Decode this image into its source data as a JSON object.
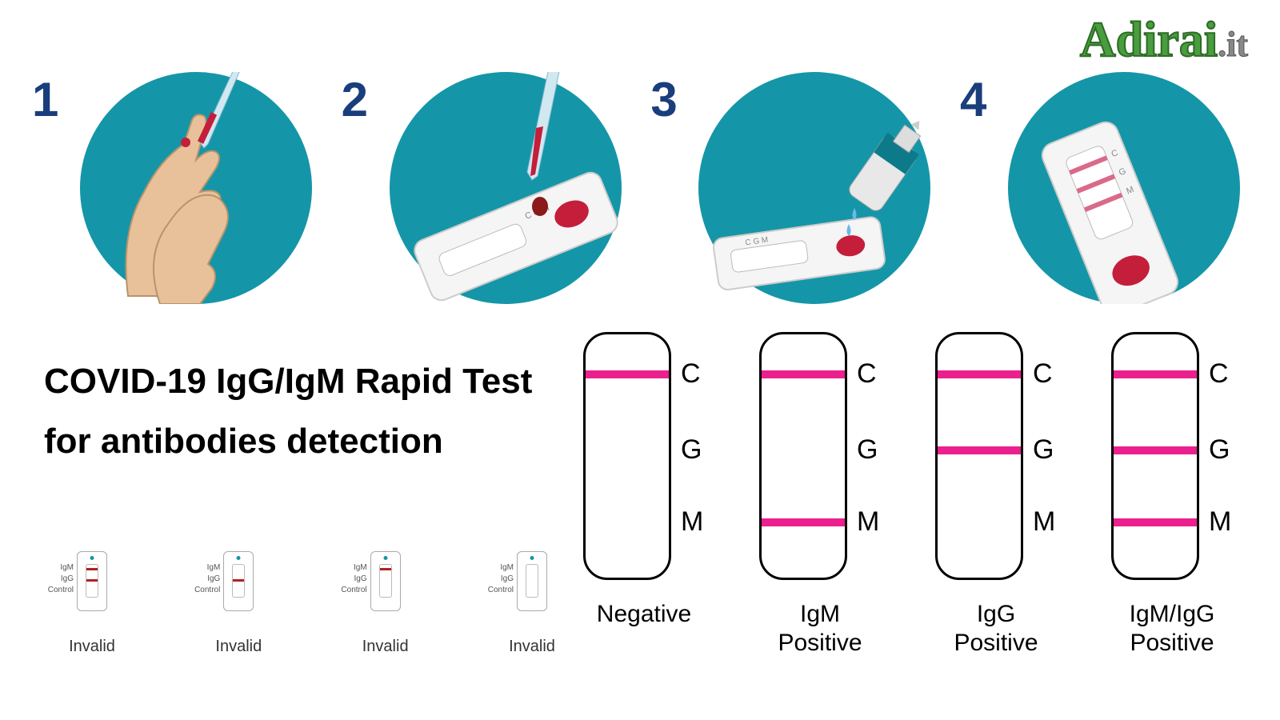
{
  "logo": {
    "main": "Adirai",
    "suffix": ".it",
    "main_color": "#4a9d3f",
    "suffix_color": "#888888"
  },
  "steps": {
    "circle_color": "#1496a8",
    "number_color": "#1a3d7c",
    "number_fontsize": 60,
    "items": [
      {
        "num": "1"
      },
      {
        "num": "2"
      },
      {
        "num": "3"
      },
      {
        "num": "4"
      }
    ]
  },
  "title": {
    "line1": "COVID-19 IgG/IgM Rapid Test",
    "line2": "for antibodies detection",
    "fontsize": 44,
    "color": "#000000"
  },
  "invalid": {
    "label": "Invalid",
    "side_labels": [
      "IgM",
      "IgG",
      "Control"
    ],
    "line_color_red": "#b02222",
    "items": [
      {
        "lines": {
          "igm": true,
          "igg": true,
          "control": false
        }
      },
      {
        "lines": {
          "igm": false,
          "igg": true,
          "control": false
        }
      },
      {
        "lines": {
          "igm": true,
          "igg": false,
          "control": false
        }
      },
      {
        "lines": {
          "igm": false,
          "igg": false,
          "control": false
        }
      }
    ]
  },
  "results": {
    "line_color": "#ec1f8e",
    "line_height": 10,
    "tube_border": "#000000",
    "label_fontsize": 34,
    "caption_fontsize": 30,
    "markers": {
      "C": 45,
      "G": 140,
      "M": 230
    },
    "items": [
      {
        "caption": "Negative",
        "lines": {
          "C": true,
          "G": false,
          "M": false
        }
      },
      {
        "caption": "IgM\nPositive",
        "lines": {
          "C": true,
          "G": false,
          "M": true
        }
      },
      {
        "caption": "IgG\nPositive",
        "lines": {
          "C": true,
          "G": true,
          "M": false
        }
      },
      {
        "caption": "IgM/IgG\nPositive",
        "lines": {
          "C": true,
          "G": true,
          "M": true
        }
      }
    ]
  }
}
